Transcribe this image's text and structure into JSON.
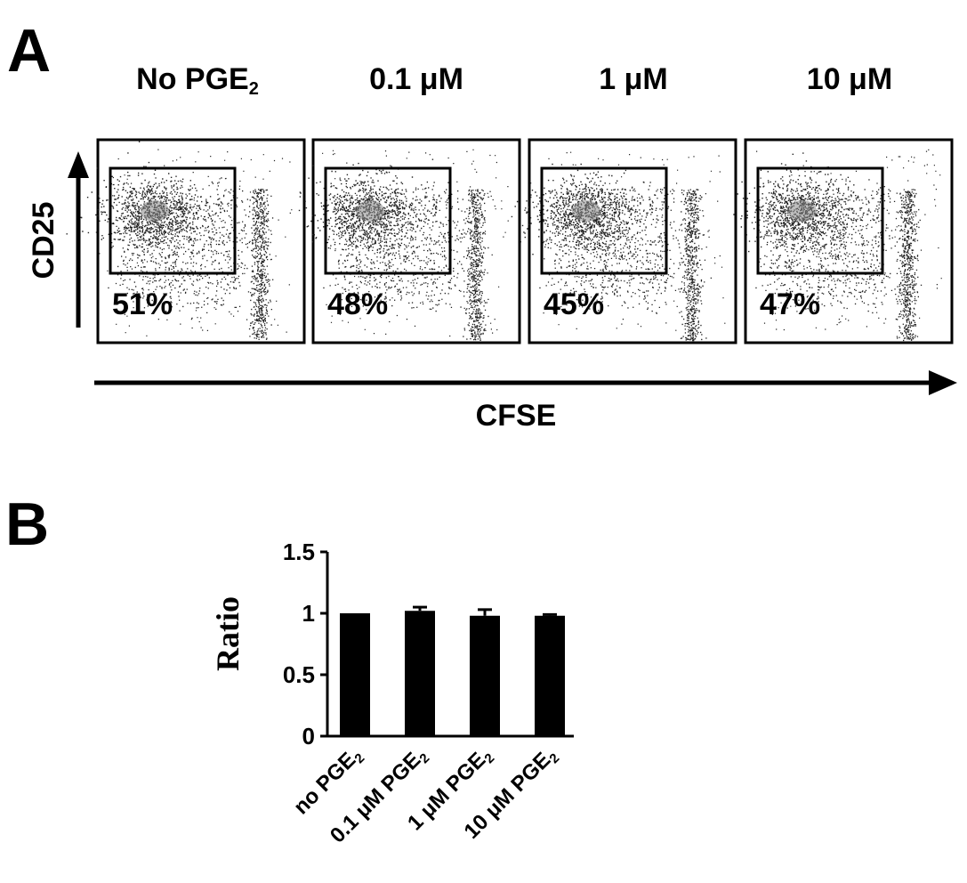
{
  "panel_a": {
    "letter": "A",
    "y_axis_label": "CD25",
    "x_axis_label": "CFSE",
    "conditions": [
      {
        "label_main": "No PGE",
        "label_sub": "2",
        "gate_percent": "51%"
      },
      {
        "label_main": "0.1 μM",
        "label_sub": "",
        "gate_percent": "48%"
      },
      {
        "label_main": "1 μM",
        "label_sub": "",
        "gate_percent": "45%"
      },
      {
        "label_main": "10 μM",
        "label_sub": "",
        "gate_percent": "47%"
      }
    ]
  },
  "panel_b": {
    "letter": "B"
  },
  "chart_data": [
    {
      "type": "scatter",
      "description_source": "panel A flow cytometry dot plots",
      "xlabel": "CFSE",
      "ylabel": "CD25",
      "categories": [
        "No PGE2",
        "0.1 μM",
        "1 μM",
        "10 μM"
      ],
      "gate_percentages": [
        51,
        48,
        45,
        47
      ]
    },
    {
      "type": "bar",
      "categories": [
        "no PGE2",
        "0.1 μM PGE2",
        "1 μM PGE2",
        "10 μM PGE2"
      ],
      "category_parts": [
        {
          "main": "no PGE",
          "sub": "2"
        },
        {
          "main": "0.1 μM PGE",
          "sub": "2"
        },
        {
          "main": "1 μM PGE",
          "sub": "2"
        },
        {
          "main": "10 μM PGE",
          "sub": "2"
        }
      ],
      "values": [
        1.0,
        1.02,
        0.98,
        0.98
      ],
      "errors": [
        0.0,
        0.03,
        0.05,
        0.01
      ],
      "ylabel": "Ratio",
      "ylim": [
        0,
        1.5
      ],
      "yticks": [
        0,
        0.5,
        1,
        1.5
      ],
      "ytick_labels": [
        "0",
        "0.5",
        "1",
        "1.5"
      ],
      "bar_color": "#000000",
      "grid": false
    }
  ]
}
